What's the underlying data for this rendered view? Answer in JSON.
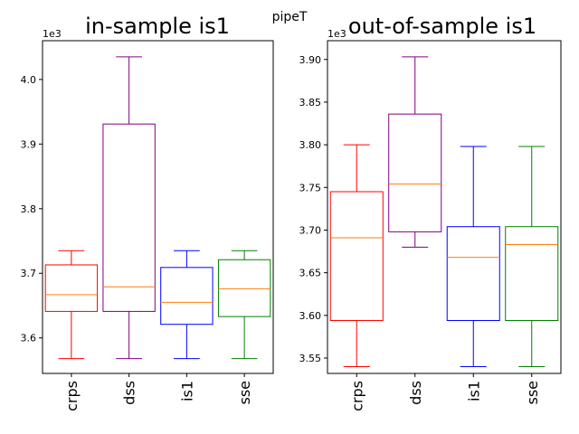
{
  "suptitle": "pipeT",
  "chart_data": [
    {
      "type": "box",
      "title": "in-sample is1",
      "offset_label": "1e3",
      "categories": [
        "crps",
        "dss",
        "is1",
        "sse"
      ],
      "colors": [
        "#ff0000",
        "#800080",
        "#0000ff",
        "#008000"
      ],
      "median_color": "#ff7f0e",
      "ylim": [
        3.545,
        4.06
      ],
      "yticks": [
        "3.6",
        "3.7",
        "3.8",
        "3.9",
        "4.0"
      ],
      "yticks_values": [
        3.6,
        3.7,
        3.8,
        3.9,
        4.0
      ],
      "boxes": [
        {
          "whislo": 3.568,
          "q1": 3.641,
          "med": 3.667,
          "q3": 3.713,
          "whishi": 3.735
        },
        {
          "whislo": 3.568,
          "q1": 3.641,
          "med": 3.679,
          "q3": 3.931,
          "whishi": 4.035
        },
        {
          "whislo": 3.568,
          "q1": 3.621,
          "med": 3.655,
          "q3": 3.709,
          "whishi": 3.735
        },
        {
          "whislo": 3.568,
          "q1": 3.633,
          "med": 3.676,
          "q3": 3.721,
          "whishi": 3.735
        }
      ]
    },
    {
      "type": "box",
      "title": "out-of-sample is1",
      "offset_label": "1e3",
      "categories": [
        "crps",
        "dss",
        "is1",
        "sse"
      ],
      "colors": [
        "#ff0000",
        "#800080",
        "#0000ff",
        "#008000"
      ],
      "median_color": "#ff7f0e",
      "ylim": [
        3.532,
        3.922
      ],
      "yticks": [
        "3.55",
        "3.60",
        "3.65",
        "3.70",
        "3.75",
        "3.80",
        "3.85",
        "3.90"
      ],
      "yticks_values": [
        3.55,
        3.6,
        3.65,
        3.7,
        3.75,
        3.8,
        3.85,
        3.9
      ],
      "boxes": [
        {
          "whislo": 3.54,
          "q1": 3.594,
          "med": 3.691,
          "q3": 3.745,
          "whishi": 3.8
        },
        {
          "whislo": 3.68,
          "q1": 3.698,
          "med": 3.754,
          "q3": 3.836,
          "whishi": 3.903
        },
        {
          "whislo": 3.54,
          "q1": 3.594,
          "med": 3.668,
          "q3": 3.704,
          "whishi": 3.798
        },
        {
          "whislo": 3.54,
          "q1": 3.594,
          "med": 3.683,
          "q3": 3.704,
          "whishi": 3.798
        }
      ]
    }
  ]
}
